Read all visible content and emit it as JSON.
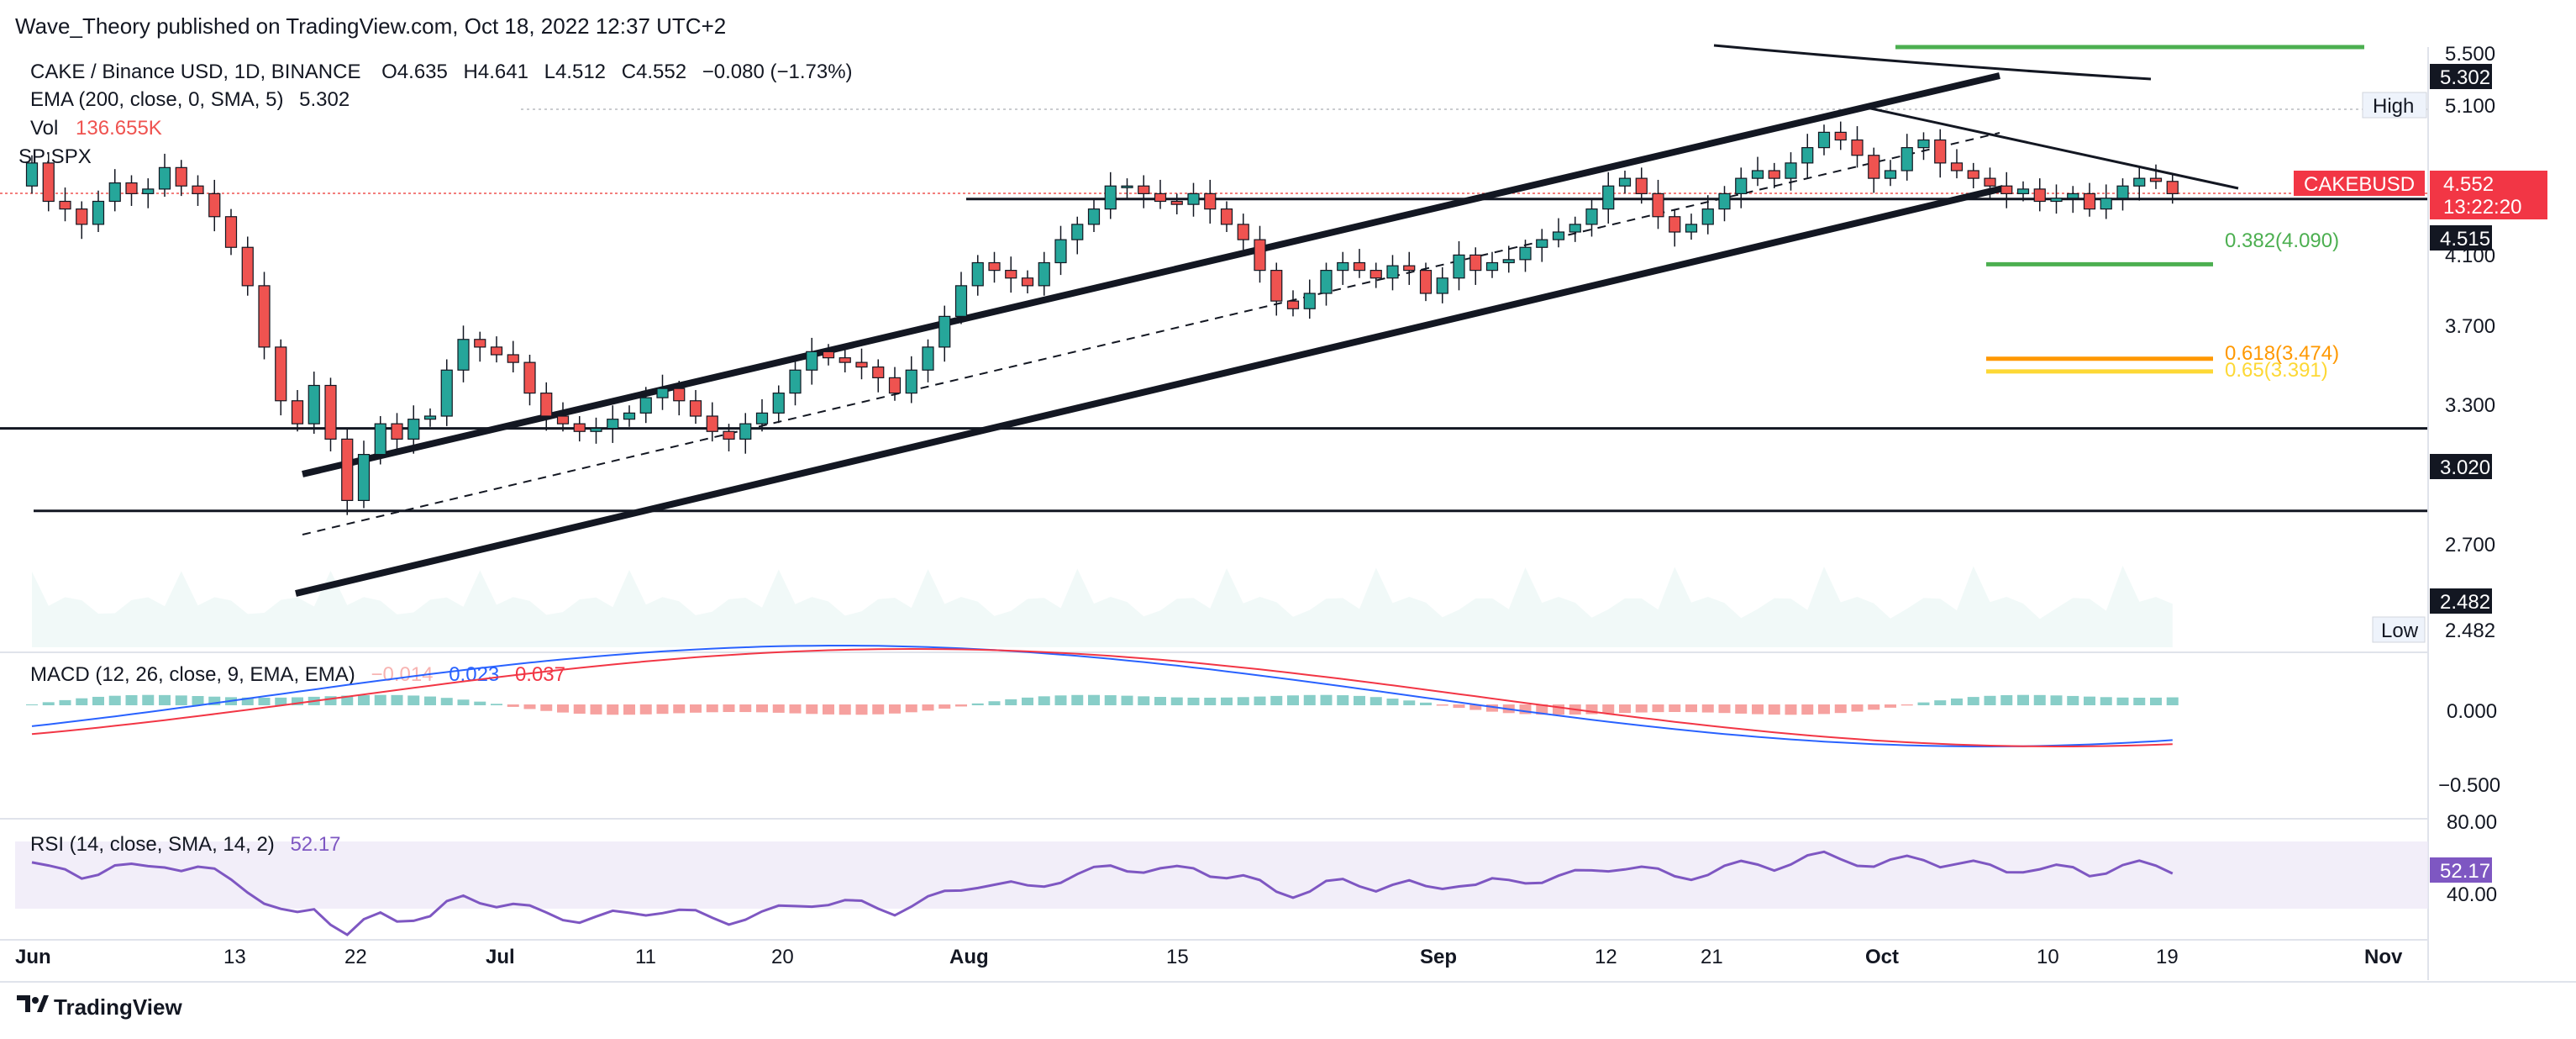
{
  "header": {
    "published": "Wave_Theory published on TradingView.com, Oct 18, 2022 12:37 UTC+2",
    "symbol": "CAKE / Binance USD, 1D, BINANCE",
    "ohlc": {
      "o": "O4.635",
      "h": "H4.641",
      "l": "L4.512",
      "c": "C4.552",
      "chg": "−0.080 (−1.73%)"
    },
    "ema_label": "EMA (200, close, 0, SMA, 5)",
    "ema_value": "5.302",
    "vol_label": "Vol",
    "vol_value": "136.655K",
    "spx_label": "SP:SPX"
  },
  "price_axis": {
    "ticks": [
      "5.500",
      "5.100",
      "4.100",
      "3.700",
      "3.300",
      "2.700",
      "40.00"
    ],
    "ema_badge": "5.302",
    "high_label": "High",
    "high_value": "5.100",
    "symbol_badge": "CAKEBUSD",
    "price_badge": "4.552",
    "countdown": "13:22:20",
    "level_4515": "4.515",
    "level_3020": "3.020",
    "level_2482": "2.482",
    "low_label": "Low",
    "low_value": "2.482"
  },
  "fib": {
    "f382": "0.382(4.090)",
    "f618": "0.618(3.474)",
    "f65": "0.65(3.391)"
  },
  "macd": {
    "label": "MACD (12, 26, close, 9, EMA, EMA)",
    "v1": "−0.014",
    "v2": "0.023",
    "v3": "0.037",
    "tick_0": "0.000",
    "tick_neg": "−0.500"
  },
  "rsi": {
    "label": "RSI (14, close, SMA, 14, 2)",
    "value": "52.17",
    "badge": "52.17",
    "tick_80": "80.00",
    "tick_40": "40.00"
  },
  "time_axis": [
    "Jun",
    "13",
    "22",
    "Jul",
    "11",
    "20",
    "Aug",
    "15",
    "Sep",
    "12",
    "21",
    "Oct",
    "10",
    "19",
    "Nov"
  ],
  "footer": {
    "brand": "TradingView"
  },
  "colors": {
    "up": "#26a69a",
    "down": "#ef5350",
    "macd": "#2962ff",
    "signal": "#f23645",
    "rsi": "#7e57c2",
    "fib382": "#4caf50",
    "fib618": "#ff9800",
    "fib65": "#fdd835"
  },
  "chart_data": {
    "type": "candlestick",
    "y_scale": "price, USD",
    "high": 5.1,
    "low": 2.482,
    "last": 4.552,
    "levels": [
      4.515,
      3.02,
      2.482
    ],
    "fib_levels": [
      4.09,
      3.474,
      3.391
    ],
    "closes": [
      4.75,
      4.5,
      4.45,
      4.35,
      4.5,
      4.62,
      4.55,
      4.58,
      4.72,
      4.6,
      4.55,
      4.4,
      4.2,
      3.95,
      3.55,
      3.2,
      3.05,
      3.3,
      2.95,
      2.55,
      2.85,
      3.05,
      2.95,
      3.08,
      3.1,
      3.4,
      3.6,
      3.55,
      3.5,
      3.45,
      3.25,
      3.1,
      3.05,
      3.0,
      3.02,
      3.08,
      3.12,
      3.22,
      3.28,
      3.2,
      3.1,
      3.0,
      2.95,
      3.05,
      3.12,
      3.25,
      3.4,
      3.52,
      3.48,
      3.45,
      3.42,
      3.35,
      3.25,
      3.4,
      3.55,
      3.75,
      3.95,
      4.1,
      4.05,
      4.0,
      3.95,
      4.1,
      4.25,
      4.35,
      4.45,
      4.6,
      4.6,
      4.55,
      4.5,
      4.48,
      4.55,
      4.45,
      4.35,
      4.25,
      4.05,
      3.85,
      3.8,
      3.9,
      4.05,
      4.1,
      4.05,
      4.0,
      4.08,
      4.05,
      3.9,
      4.0,
      4.15,
      4.05,
      4.1,
      4.12,
      4.2,
      4.25,
      4.3,
      4.35,
      4.45,
      4.6,
      4.65,
      4.55,
      4.4,
      4.3,
      4.35,
      4.45,
      4.55,
      4.65,
      4.7,
      4.65,
      4.75,
      4.85,
      4.95,
      4.9,
      4.8,
      4.65,
      4.7,
      4.85,
      4.9,
      4.75,
      4.7,
      4.65,
      4.6,
      4.55,
      4.58,
      4.5,
      4.52,
      4.55,
      4.45,
      4.52,
      4.6,
      4.65,
      4.63,
      4.55
    ],
    "rsi_range": [
      40,
      80
    ]
  }
}
